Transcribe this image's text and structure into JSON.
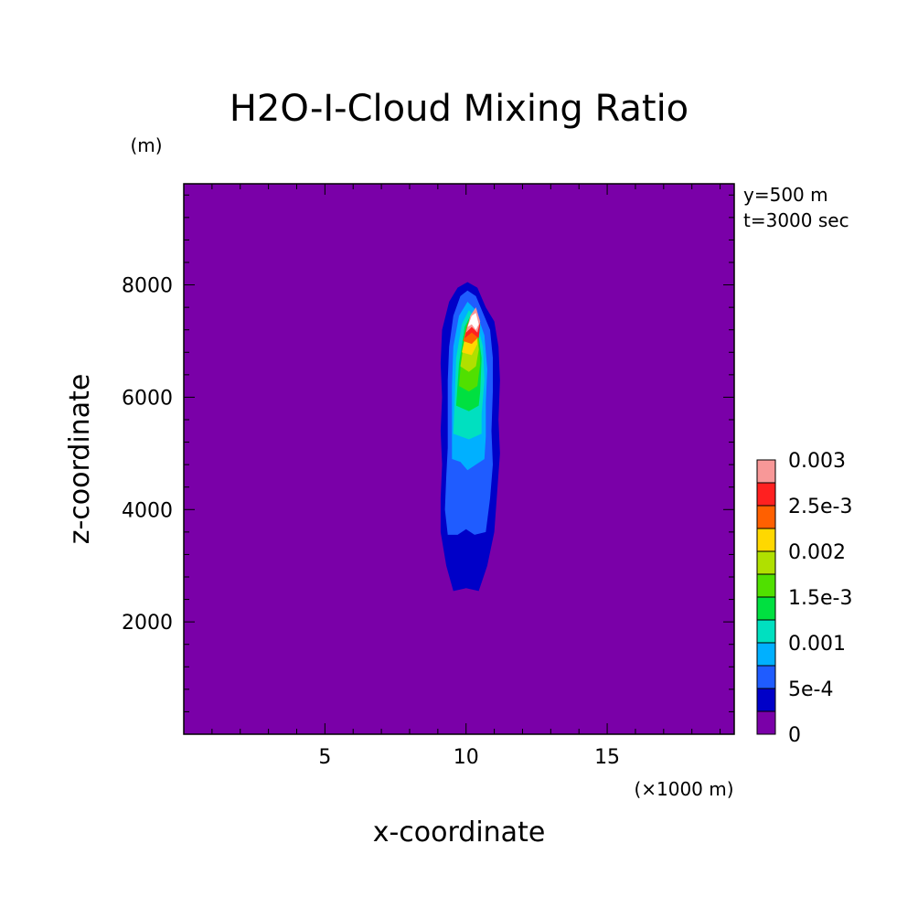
{
  "chart_data": {
    "type": "contour",
    "title": "H2O-I-Cloud Mixing Ratio",
    "xlabel": "x-coordinate",
    "ylabel": "z-coordinate",
    "x_unit": "(×1000 m)",
    "y_unit": "(m)",
    "annotations": [
      "y=500 m",
      "t=3000 sec"
    ],
    "xlim": [
      0,
      19.5
    ],
    "ylim": [
      0,
      9800
    ],
    "x_ticks": [
      5,
      10,
      15
    ],
    "y_ticks": [
      2000,
      4000,
      6000,
      8000
    ],
    "colorbar": {
      "levels": [
        0,
        0.00025,
        0.0005,
        0.00075,
        0.001,
        0.00125,
        0.0015,
        0.00175,
        0.002,
        0.00225,
        0.0025,
        0.00275,
        0.003
      ],
      "labels": [
        "0",
        "5e-4",
        "0.001",
        "1.5e-3",
        "0.002",
        "2.5e-3",
        "0.003"
      ],
      "colors": [
        "#7a00a8",
        "#0000c8",
        "#1f5cff",
        "#00b0ff",
        "#00e0c0",
        "#00e040",
        "#50e000",
        "#b0e000",
        "#ffd800",
        "#ff6000",
        "#ff2020",
        "#f89898",
        "#ffffff"
      ]
    },
    "background_color": "#7a00a8",
    "contours": [
      {
        "level": 0.00025,
        "points": [
          [
            9.55,
            2.55
          ],
          [
            9.3,
            3.0
          ],
          [
            9.1,
            3.6
          ],
          [
            9.1,
            4.2
          ],
          [
            9.15,
            4.8
          ],
          [
            9.1,
            5.4
          ],
          [
            9.15,
            6.0
          ],
          [
            9.1,
            6.6
          ],
          [
            9.15,
            7.2
          ],
          [
            9.4,
            7.7
          ],
          [
            9.7,
            7.95
          ],
          [
            10.05,
            8.05
          ],
          [
            10.4,
            7.95
          ],
          [
            10.7,
            7.6
          ],
          [
            11.0,
            7.35
          ],
          [
            11.15,
            6.9
          ],
          [
            11.2,
            6.3
          ],
          [
            11.15,
            5.6
          ],
          [
            11.2,
            5.0
          ],
          [
            11.1,
            4.3
          ],
          [
            11.0,
            3.6
          ],
          [
            10.75,
            3.0
          ],
          [
            10.45,
            2.55
          ],
          [
            10.0,
            2.6
          ]
        ]
      },
      {
        "level": 0.0005,
        "points": [
          [
            9.35,
            3.55
          ],
          [
            9.25,
            4.0
          ],
          [
            9.3,
            4.6
          ],
          [
            9.35,
            5.1
          ],
          [
            9.35,
            5.7
          ],
          [
            9.35,
            6.3
          ],
          [
            9.4,
            6.9
          ],
          [
            9.55,
            7.45
          ],
          [
            9.8,
            7.8
          ],
          [
            10.05,
            7.9
          ],
          [
            10.35,
            7.8
          ],
          [
            10.6,
            7.5
          ],
          [
            10.85,
            7.2
          ],
          [
            10.95,
            6.7
          ],
          [
            10.95,
            6.1
          ],
          [
            10.9,
            5.4
          ],
          [
            10.95,
            4.8
          ],
          [
            10.85,
            4.2
          ],
          [
            10.7,
            3.6
          ],
          [
            10.3,
            3.55
          ],
          [
            10.0,
            3.65
          ],
          [
            9.7,
            3.55
          ]
        ]
      },
      {
        "level": 0.00075,
        "points": [
          [
            9.5,
            4.9
          ],
          [
            9.5,
            5.5
          ],
          [
            9.5,
            6.2
          ],
          [
            9.55,
            6.9
          ],
          [
            9.75,
            7.45
          ],
          [
            10.05,
            7.7
          ],
          [
            10.35,
            7.55
          ],
          [
            10.65,
            7.1
          ],
          [
            10.75,
            6.5
          ],
          [
            10.7,
            5.9
          ],
          [
            10.7,
            5.3
          ],
          [
            10.65,
            4.9
          ],
          [
            10.35,
            4.8
          ],
          [
            10.05,
            4.7
          ],
          [
            9.8,
            4.85
          ]
        ]
      },
      {
        "level": 0.001,
        "points": [
          [
            9.55,
            5.35
          ],
          [
            9.6,
            6.0
          ],
          [
            9.65,
            6.7
          ],
          [
            9.85,
            7.3
          ],
          [
            10.1,
            7.55
          ],
          [
            10.35,
            7.4
          ],
          [
            10.6,
            6.9
          ],
          [
            10.65,
            6.3
          ],
          [
            10.55,
            5.7
          ],
          [
            10.55,
            5.35
          ],
          [
            10.1,
            5.25
          ]
        ]
      },
      {
        "level": 0.00125,
        "points": [
          [
            9.65,
            5.85
          ],
          [
            9.75,
            6.6
          ],
          [
            9.95,
            7.25
          ],
          [
            10.15,
            7.45
          ],
          [
            10.4,
            7.25
          ],
          [
            10.55,
            6.7
          ],
          [
            10.5,
            6.1
          ],
          [
            10.45,
            5.85
          ],
          [
            10.1,
            5.75
          ]
        ]
      },
      {
        "level": 0.0015,
        "points": [
          [
            9.75,
            6.2
          ],
          [
            9.85,
            6.8
          ],
          [
            10.05,
            7.2
          ],
          [
            10.25,
            7.35
          ],
          [
            10.45,
            7.1
          ],
          [
            10.5,
            6.6
          ],
          [
            10.4,
            6.2
          ],
          [
            10.1,
            6.1
          ]
        ]
      },
      {
        "level": 0.00175,
        "points": [
          [
            9.8,
            6.55
          ],
          [
            9.95,
            7.0
          ],
          [
            10.15,
            7.3
          ],
          [
            10.35,
            7.2
          ],
          [
            10.45,
            6.85
          ],
          [
            10.35,
            6.55
          ],
          [
            10.1,
            6.45
          ]
        ]
      },
      {
        "level": 0.002,
        "points": [
          [
            9.85,
            6.8
          ],
          [
            10.0,
            7.15
          ],
          [
            10.2,
            7.4
          ],
          [
            10.4,
            7.2
          ],
          [
            10.4,
            6.95
          ],
          [
            10.2,
            6.75
          ]
        ]
      },
      {
        "level": 0.00225,
        "points": [
          [
            9.9,
            7.0
          ],
          [
            10.05,
            7.3
          ],
          [
            10.25,
            7.45
          ],
          [
            10.45,
            7.25
          ],
          [
            10.4,
            7.05
          ],
          [
            10.2,
            6.95
          ]
        ]
      },
      {
        "level": 0.0025,
        "points": [
          [
            9.95,
            7.05
          ],
          [
            10.1,
            7.35
          ],
          [
            10.3,
            7.55
          ],
          [
            10.5,
            7.3
          ],
          [
            10.45,
            7.05
          ],
          [
            10.2,
            7.15
          ]
        ]
      },
      {
        "level": 0.00275,
        "points": [
          [
            10.0,
            7.15
          ],
          [
            10.15,
            7.45
          ],
          [
            10.35,
            7.6
          ],
          [
            10.5,
            7.35
          ],
          [
            10.4,
            7.15
          ],
          [
            10.2,
            7.25
          ]
        ]
      },
      {
        "level": 0.003,
        "points": [
          [
            10.05,
            7.25
          ],
          [
            10.2,
            7.45
          ],
          [
            10.35,
            7.5
          ],
          [
            10.45,
            7.3
          ],
          [
            10.35,
            7.2
          ],
          [
            10.2,
            7.3
          ]
        ]
      }
    ]
  }
}
